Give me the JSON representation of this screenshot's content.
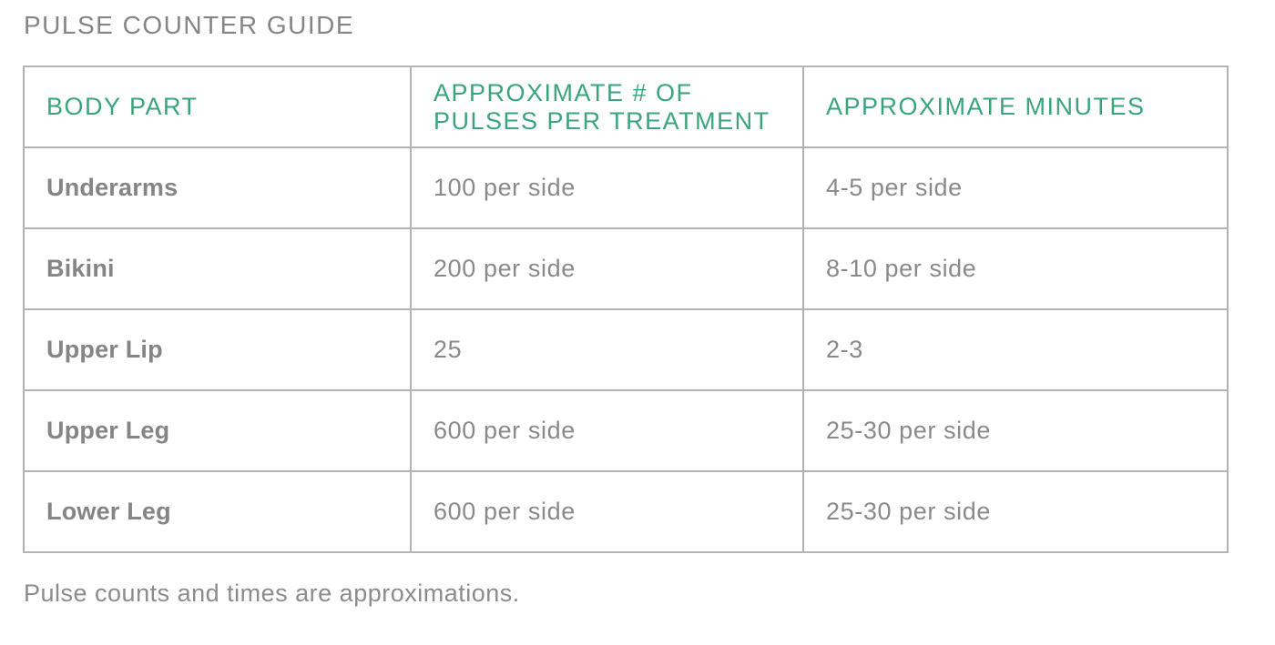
{
  "page": {
    "title": "PULSE COUNTER GUIDE",
    "footnote": "Pulse counts and times are approximations."
  },
  "table": {
    "headers": [
      "BODY PART",
      "APPROXIMATE  # OF PULSES PER TREATMENT",
      "APPROXIMATE MINUTES"
    ],
    "rows": [
      [
        "Underarms",
        "100 per side",
        "4-5 per side"
      ],
      [
        "Bikini",
        "200 per side",
        "8-10 per side"
      ],
      [
        "Upper Lip",
        "25",
        "2-3"
      ],
      [
        "Upper Leg",
        "600 per side",
        "25-30 per side"
      ],
      [
        "Lower Leg",
        "600 per side",
        "25-30 per side"
      ]
    ]
  },
  "colors": {
    "header_text": "#3aa57b",
    "body_text": "#8a8a8a",
    "border": "#b3b3b3"
  }
}
